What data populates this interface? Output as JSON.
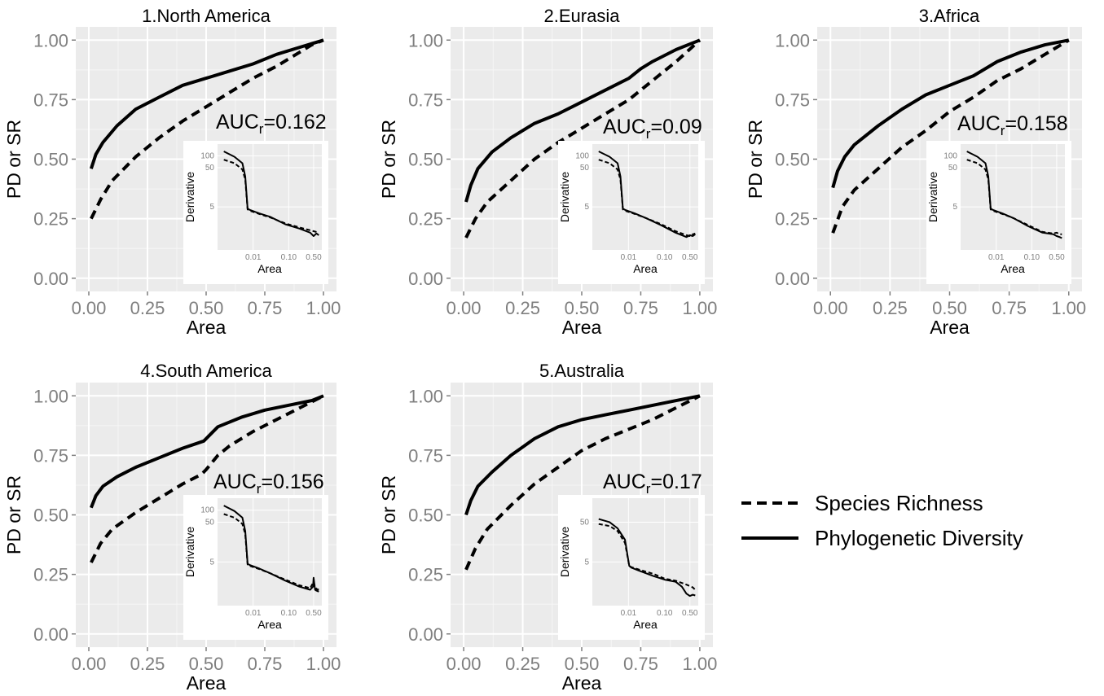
{
  "figure": {
    "legend": {
      "entries": [
        {
          "name": "Species Richness",
          "style": "dashed"
        },
        {
          "name": "Phylogenetic Diversity",
          "style": "solid"
        }
      ],
      "placement": "bottom-right"
    },
    "colors": {
      "panel_bg": "#ebebeb",
      "grid": "#ffffff",
      "line": "#000000",
      "tick_text": "#7f7f7f"
    }
  },
  "chart_data": [
    {
      "type": "line",
      "title": "1.North America",
      "xlabel": "Area",
      "ylabel": "PD or SR",
      "xlim": [
        0,
        1
      ],
      "ylim": [
        0,
        1
      ],
      "xticks": [
        "0.00",
        "0.25",
        "0.50",
        "0.75",
        "1.00"
      ],
      "yticks": [
        "0.00",
        "0.25",
        "0.50",
        "0.75",
        "1.00"
      ],
      "grid": true,
      "annotation": {
        "prefix": "AUC",
        "sub": "r",
        "value": "=0.162"
      },
      "series": [
        {
          "name": "Species Richness",
          "style": "dashed",
          "x": [
            0.01,
            0.05,
            0.1,
            0.2,
            0.3,
            0.4,
            0.5,
            0.6,
            0.7,
            0.8,
            0.9,
            0.95,
            1.0
          ],
          "y": [
            0.25,
            0.33,
            0.41,
            0.51,
            0.59,
            0.66,
            0.72,
            0.78,
            0.84,
            0.89,
            0.95,
            0.98,
            1.0
          ]
        },
        {
          "name": "Phylogenetic Diversity",
          "style": "solid",
          "x": [
            0.01,
            0.03,
            0.06,
            0.12,
            0.2,
            0.3,
            0.4,
            0.5,
            0.6,
            0.7,
            0.8,
            0.9,
            1.0
          ],
          "y": [
            0.46,
            0.52,
            0.57,
            0.64,
            0.71,
            0.76,
            0.81,
            0.84,
            0.87,
            0.9,
            0.94,
            0.97,
            1.0
          ]
        }
      ],
      "inset": {
        "xlabel": "Area",
        "ylabel": "Derivative",
        "xticks": [
          "0.01",
          "0.10",
          "0.50"
        ],
        "yticks": [
          "100",
          "50",
          "5"
        ],
        "series": [
          {
            "name": "Species Richness",
            "style": "dashed",
            "x": [
              0.0015,
              0.003,
              0.005,
              0.006,
              0.007,
              0.008,
              0.015,
              0.03,
              0.08,
              0.2,
              0.5,
              0.7
            ],
            "y": [
              80,
              65,
              45,
              25,
              4.3,
              4.0,
              3.3,
              2.7,
              1.9,
              1.5,
              1.2,
              1.1
            ]
          },
          {
            "name": "Phylogenetic Diversity",
            "style": "solid",
            "x": [
              0.0015,
              0.003,
              0.005,
              0.006,
              0.007,
              0.008,
              0.015,
              0.03,
              0.08,
              0.2,
              0.4,
              0.5,
              0.6,
              0.7
            ],
            "y": [
              130,
              95,
              65,
              30,
              4.5,
              4.2,
              3.4,
              2.8,
              1.8,
              1.4,
              1.1,
              0.9,
              1.05,
              0.95
            ]
          }
        ]
      }
    },
    {
      "type": "line",
      "title": "2.Eurasia",
      "xlabel": "Area",
      "ylabel": "PD or SR",
      "xlim": [
        0,
        1
      ],
      "ylim": [
        0,
        1
      ],
      "xticks": [
        "0.00",
        "0.25",
        "0.50",
        "0.75",
        "1.00"
      ],
      "yticks": [
        "0.00",
        "0.25",
        "0.50",
        "0.75",
        "1.00"
      ],
      "grid": true,
      "annotation": {
        "prefix": "AUC",
        "sub": "r",
        "value": "=0.09"
      },
      "series": [
        {
          "name": "Species Richness",
          "style": "dashed",
          "x": [
            0.01,
            0.05,
            0.1,
            0.2,
            0.3,
            0.4,
            0.5,
            0.6,
            0.7,
            0.8,
            0.9,
            1.0
          ],
          "y": [
            0.17,
            0.25,
            0.32,
            0.41,
            0.5,
            0.57,
            0.63,
            0.69,
            0.75,
            0.83,
            0.91,
            1.0
          ]
        },
        {
          "name": "Phylogenetic Diversity",
          "style": "solid",
          "x": [
            0.01,
            0.03,
            0.06,
            0.12,
            0.2,
            0.3,
            0.4,
            0.5,
            0.6,
            0.7,
            0.75,
            0.8,
            0.9,
            1.0
          ],
          "y": [
            0.32,
            0.39,
            0.46,
            0.53,
            0.59,
            0.65,
            0.69,
            0.74,
            0.79,
            0.84,
            0.88,
            0.91,
            0.96,
            1.0
          ]
        }
      ],
      "inset": {
        "xlabel": "Area",
        "ylabel": "Derivative",
        "xticks": [
          "0.01",
          "0.10",
          "0.50"
        ],
        "yticks": [
          "100",
          "50",
          "5"
        ],
        "series": [
          {
            "name": "Species Richness",
            "style": "dashed",
            "x": [
              0.0015,
              0.003,
              0.005,
              0.006,
              0.007,
              0.008,
              0.015,
              0.03,
              0.08,
              0.2,
              0.4,
              0.5,
              0.6,
              0.7
            ],
            "y": [
              80,
              65,
              45,
              25,
              4.3,
              4.0,
              3.3,
              2.6,
              1.8,
              1.2,
              0.95,
              0.9,
              1.0,
              1.05
            ]
          },
          {
            "name": "Phylogenetic Diversity",
            "style": "solid",
            "x": [
              0.0015,
              0.003,
              0.005,
              0.006,
              0.007,
              0.008,
              0.015,
              0.03,
              0.08,
              0.2,
              0.4,
              0.5,
              0.6,
              0.7
            ],
            "y": [
              130,
              95,
              65,
              30,
              4.5,
              4.2,
              3.4,
              2.6,
              1.7,
              1.1,
              0.85,
              0.95,
              0.9,
              1.0
            ]
          }
        ]
      }
    },
    {
      "type": "line",
      "title": "3.Africa",
      "xlabel": "Area",
      "ylabel": "PD or SR",
      "xlim": [
        0,
        1
      ],
      "ylim": [
        0,
        1
      ],
      "xticks": [
        "0.00",
        "0.25",
        "0.50",
        "0.75",
        "1.00"
      ],
      "yticks": [
        "0.00",
        "0.25",
        "0.50",
        "0.75",
        "1.00"
      ],
      "grid": true,
      "annotation": {
        "prefix": "AUC",
        "sub": "r",
        "value": "=0.158"
      },
      "series": [
        {
          "name": "Species Richness",
          "style": "dashed",
          "x": [
            0.01,
            0.05,
            0.1,
            0.2,
            0.3,
            0.4,
            0.5,
            0.6,
            0.7,
            0.8,
            0.9,
            1.0
          ],
          "y": [
            0.19,
            0.3,
            0.37,
            0.46,
            0.55,
            0.62,
            0.7,
            0.76,
            0.83,
            0.88,
            0.94,
            1.0
          ]
        },
        {
          "name": "Phylogenetic Diversity",
          "style": "solid",
          "x": [
            0.01,
            0.03,
            0.06,
            0.1,
            0.2,
            0.3,
            0.4,
            0.5,
            0.6,
            0.7,
            0.8,
            0.9,
            1.0
          ],
          "y": [
            0.38,
            0.45,
            0.51,
            0.56,
            0.64,
            0.71,
            0.77,
            0.81,
            0.85,
            0.91,
            0.95,
            0.98,
            1.0
          ]
        }
      ],
      "inset": {
        "xlabel": "Area",
        "ylabel": "Derivative",
        "xticks": [
          "0.01",
          "0.10",
          "0.50"
        ],
        "yticks": [
          "100",
          "50",
          "5"
        ],
        "series": [
          {
            "name": "Species Richness",
            "style": "dashed",
            "x": [
              0.0015,
              0.003,
              0.005,
              0.006,
              0.007,
              0.008,
              0.015,
              0.03,
              0.08,
              0.2,
              0.4,
              0.5,
              0.6,
              0.7
            ],
            "y": [
              80,
              65,
              45,
              25,
              4.3,
              4.0,
              3.3,
              2.6,
              1.7,
              1.15,
              1.05,
              1.1,
              1.0,
              1.0
            ]
          },
          {
            "name": "Phylogenetic Diversity",
            "style": "solid",
            "x": [
              0.0015,
              0.003,
              0.005,
              0.006,
              0.007,
              0.008,
              0.015,
              0.03,
              0.08,
              0.2,
              0.4,
              0.5,
              0.6,
              0.7
            ],
            "y": [
              130,
              95,
              65,
              30,
              4.5,
              4.2,
              3.4,
              2.6,
              1.6,
              1.1,
              1.0,
              0.9,
              0.85,
              0.8
            ]
          }
        ]
      }
    },
    {
      "type": "line",
      "title": "4.South America",
      "xlabel": "Area",
      "ylabel": "PD or SR",
      "xlim": [
        0,
        1
      ],
      "ylim": [
        0,
        1
      ],
      "xticks": [
        "0.00",
        "0.25",
        "0.50",
        "0.75",
        "1.00"
      ],
      "yticks": [
        "0.00",
        "0.25",
        "0.50",
        "0.75",
        "1.00"
      ],
      "grid": true,
      "annotation": {
        "prefix": "AUC",
        "sub": "r",
        "value": "=0.156"
      },
      "series": [
        {
          "name": "Species Richness",
          "style": "dashed",
          "x": [
            0.01,
            0.05,
            0.1,
            0.2,
            0.3,
            0.4,
            0.48,
            0.5,
            0.55,
            0.6,
            0.7,
            0.8,
            0.9,
            1.0
          ],
          "y": [
            0.3,
            0.38,
            0.44,
            0.51,
            0.57,
            0.63,
            0.67,
            0.69,
            0.75,
            0.79,
            0.85,
            0.9,
            0.95,
            1.0
          ]
        },
        {
          "name": "Phylogenetic Diversity",
          "style": "solid",
          "x": [
            0.01,
            0.03,
            0.06,
            0.12,
            0.2,
            0.3,
            0.4,
            0.49,
            0.55,
            0.65,
            0.75,
            0.85,
            0.95,
            1.0
          ],
          "y": [
            0.53,
            0.58,
            0.62,
            0.66,
            0.7,
            0.74,
            0.78,
            0.81,
            0.87,
            0.91,
            0.94,
            0.96,
            0.98,
            1.0
          ]
        }
      ],
      "inset": {
        "xlabel": "Area",
        "ylabel": "Derivative",
        "xticks": [
          "0.01",
          "0.10",
          "0.50"
        ],
        "yticks": [
          "100",
          "50",
          "5"
        ],
        "series": [
          {
            "name": "Species Richness",
            "style": "dashed",
            "x": [
              0.0015,
              0.003,
              0.005,
              0.006,
              0.007,
              0.008,
              0.015,
              0.03,
              0.08,
              0.2,
              0.4,
              0.5,
              0.55,
              0.6,
              0.7
            ],
            "y": [
              80,
              65,
              45,
              25,
              4.3,
              4.0,
              3.3,
              2.6,
              1.8,
              1.3,
              1.1,
              1.6,
              1.2,
              1.05,
              1.0
            ]
          },
          {
            "name": "Phylogenetic Diversity",
            "style": "solid",
            "x": [
              0.0015,
              0.003,
              0.005,
              0.006,
              0.007,
              0.008,
              0.015,
              0.03,
              0.08,
              0.2,
              0.4,
              0.48,
              0.5,
              0.55,
              0.6,
              0.7
            ],
            "y": [
              130,
              95,
              65,
              30,
              4.5,
              4.2,
              3.4,
              2.6,
              1.7,
              1.2,
              1.0,
              1.2,
              2.0,
              1.0,
              0.95,
              0.9
            ]
          }
        ]
      }
    },
    {
      "type": "line",
      "title": "5.Australia",
      "xlabel": "Area",
      "ylabel": "PD or SR",
      "xlim": [
        0,
        1
      ],
      "ylim": [
        0,
        1
      ],
      "xticks": [
        "0.00",
        "0.25",
        "0.50",
        "0.75",
        "1.00"
      ],
      "yticks": [
        "0.00",
        "0.25",
        "0.50",
        "0.75",
        "1.00"
      ],
      "grid": true,
      "annotation": {
        "prefix": "AUC",
        "sub": "r",
        "value": "=0.17"
      },
      "series": [
        {
          "name": "Species Richness",
          "style": "dashed",
          "x": [
            0.01,
            0.05,
            0.1,
            0.2,
            0.3,
            0.4,
            0.5,
            0.6,
            0.7,
            0.8,
            0.9,
            1.0
          ],
          "y": [
            0.27,
            0.36,
            0.44,
            0.54,
            0.63,
            0.7,
            0.77,
            0.82,
            0.86,
            0.9,
            0.95,
            1.0
          ]
        },
        {
          "name": "Phylogenetic Diversity",
          "style": "solid",
          "x": [
            0.01,
            0.03,
            0.06,
            0.12,
            0.2,
            0.3,
            0.4,
            0.5,
            0.6,
            0.7,
            0.8,
            0.9,
            1.0
          ],
          "y": [
            0.5,
            0.56,
            0.62,
            0.68,
            0.75,
            0.82,
            0.87,
            0.9,
            0.92,
            0.94,
            0.96,
            0.98,
            1.0
          ]
        }
      ],
      "inset": {
        "xlabel": "Area",
        "ylabel": "Derivative",
        "xticks": [
          "0.01",
          "0.10",
          "0.50"
        ],
        "yticks": [
          "50",
          "5"
        ],
        "series": [
          {
            "name": "Species Richness",
            "style": "dashed",
            "x": [
              0.0015,
              0.003,
              0.005,
              0.008,
              0.0105,
              0.012,
              0.02,
              0.05,
              0.1,
              0.2,
              0.4,
              0.6,
              0.7
            ],
            "y": [
              45,
              40,
              30,
              15,
              4.0,
              3.7,
              3.2,
              2.5,
              1.9,
              1.7,
              1.35,
              1.15,
              1.0
            ]
          },
          {
            "name": "Phylogenetic Diversity",
            "style": "solid",
            "x": [
              0.0015,
              0.003,
              0.005,
              0.008,
              0.0105,
              0.012,
              0.02,
              0.05,
              0.1,
              0.2,
              0.3,
              0.4,
              0.5,
              0.6,
              0.7
            ],
            "y": [
              60,
              50,
              35,
              18,
              4.0,
              3.6,
              3.0,
              2.2,
              1.8,
              1.6,
              1.2,
              0.8,
              0.7,
              0.75,
              0.72
            ]
          }
        ]
      }
    }
  ]
}
